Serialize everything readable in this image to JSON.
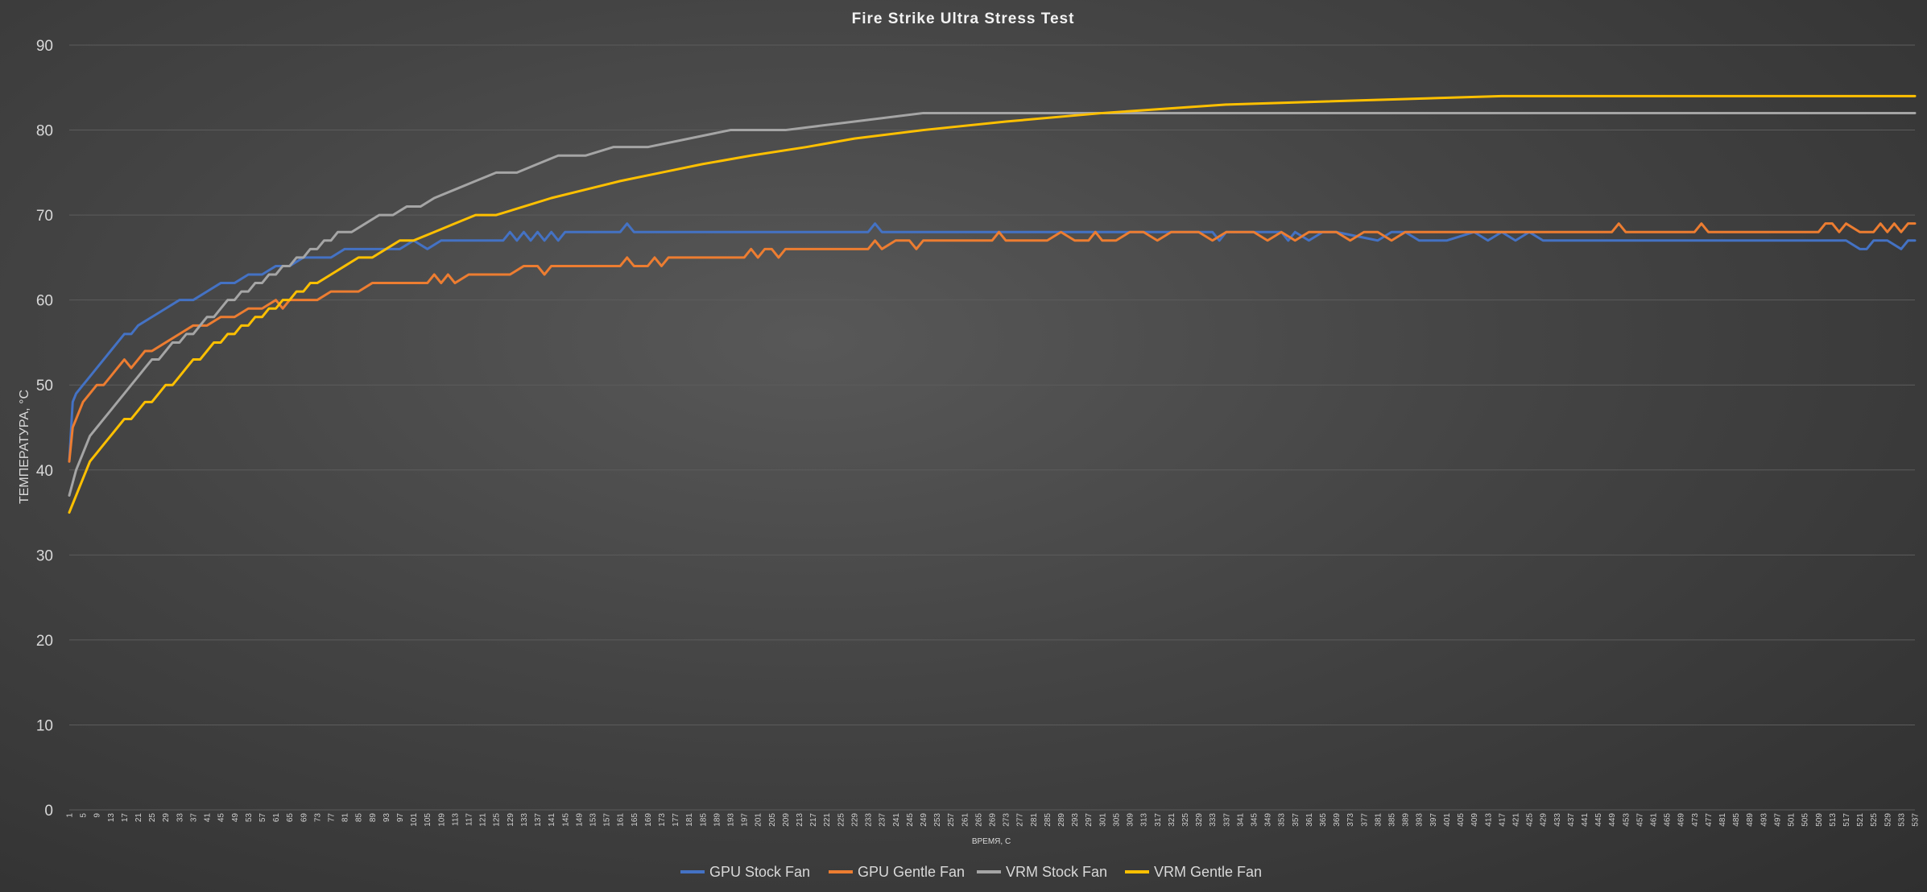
{
  "chart_data": {
    "type": "line",
    "title": "Fire Strike Ultra Stress Test",
    "xlabel": "ВРЕМЯ, С",
    "ylabel": "ТЕМПЕРАТУРА, °С",
    "ylim": [
      0,
      90
    ],
    "yticks": [
      0,
      10,
      20,
      30,
      40,
      50,
      60,
      70,
      80,
      90
    ],
    "xlim": [
      1,
      537
    ],
    "xtick_start": 1,
    "xtick_step": 4,
    "grid": true,
    "legend_position": "bottom",
    "series": [
      {
        "name": "GPU Stock Fan",
        "color": "#4472c4",
        "x": [
          1,
          2,
          3,
          5,
          7,
          9,
          11,
          13,
          15,
          17,
          19,
          21,
          25,
          29,
          33,
          37,
          41,
          45,
          49,
          53,
          57,
          61,
          65,
          69,
          73,
          77,
          81,
          85,
          89,
          93,
          97,
          101,
          105,
          109,
          113,
          117,
          121,
          125,
          127,
          129,
          131,
          133,
          135,
          137,
          139,
          141,
          143,
          145,
          147,
          149,
          153,
          157,
          161,
          163,
          165,
          169,
          177,
          185,
          193,
          201,
          213,
          225,
          233,
          235,
          237,
          249,
          261,
          273,
          285,
          297,
          309,
          321,
          333,
          335,
          337,
          345,
          353,
          355,
          357,
          361,
          365,
          369,
          381,
          385,
          389,
          393,
          401,
          409,
          413,
          417,
          421,
          425,
          429,
          433,
          441,
          449,
          457,
          465,
          473,
          481,
          489,
          497,
          505,
          513,
          517,
          521,
          523,
          525,
          529,
          533,
          535,
          537
        ],
        "values": [
          41,
          48,
          49,
          50,
          51,
          52,
          53,
          54,
          55,
          56,
          56,
          57,
          58,
          59,
          60,
          60,
          61,
          62,
          62,
          63,
          63,
          64,
          64,
          65,
          65,
          65,
          66,
          66,
          66,
          66,
          66,
          67,
          66,
          67,
          67,
          67,
          67,
          67,
          67,
          68,
          67,
          68,
          67,
          68,
          67,
          68,
          67,
          68,
          68,
          68,
          68,
          68,
          68,
          69,
          68,
          68,
          68,
          68,
          68,
          68,
          68,
          68,
          68,
          69,
          68,
          68,
          68,
          68,
          68,
          68,
          68,
          68,
          68,
          67,
          68,
          68,
          68,
          67,
          68,
          67,
          68,
          68,
          67,
          68,
          68,
          67,
          67,
          68,
          67,
          68,
          67,
          68,
          67,
          67,
          67,
          67,
          67,
          67,
          67,
          67,
          67,
          67,
          67,
          67,
          67,
          66,
          66,
          67,
          67,
          66,
          67,
          67
        ]
      },
      {
        "name": "GPU Gentle Fan",
        "color": "#ed7d31",
        "x": [
          1,
          2,
          3,
          5,
          7,
          9,
          11,
          13,
          15,
          17,
          19,
          21,
          23,
          25,
          29,
          33,
          37,
          41,
          45,
          49,
          53,
          57,
          61,
          63,
          65,
          69,
          73,
          77,
          81,
          85,
          89,
          93,
          97,
          101,
          105,
          107,
          109,
          111,
          113,
          117,
          121,
          125,
          129,
          133,
          137,
          139,
          141,
          145,
          153,
          161,
          163,
          165,
          169,
          171,
          173,
          175,
          177,
          185,
          193,
          197,
          199,
          201,
          203,
          205,
          207,
          209,
          217,
          225,
          233,
          235,
          237,
          241,
          245,
          247,
          249,
          257,
          265,
          269,
          271,
          273,
          281,
          285,
          289,
          293,
          297,
          299,
          301,
          305,
          309,
          313,
          317,
          321,
          325,
          329,
          333,
          337,
          341,
          345,
          349,
          353,
          357,
          361,
          365,
          369,
          373,
          377,
          381,
          385,
          389,
          397,
          405,
          413,
          421,
          429,
          437,
          445,
          449,
          451,
          453,
          461,
          469,
          473,
          475,
          477,
          485,
          493,
          501,
          509,
          511,
          513,
          515,
          517,
          521,
          525,
          527,
          529,
          531,
          533,
          535,
          537
        ],
        "values": [
          41,
          45,
          46,
          48,
          49,
          50,
          50,
          51,
          52,
          53,
          52,
          53,
          54,
          54,
          55,
          56,
          57,
          57,
          58,
          58,
          59,
          59,
          60,
          59,
          60,
          60,
          60,
          61,
          61,
          61,
          62,
          62,
          62,
          62,
          62,
          63,
          62,
          63,
          62,
          63,
          63,
          63,
          63,
          64,
          64,
          63,
          64,
          64,
          64,
          64,
          65,
          64,
          64,
          65,
          64,
          65,
          65,
          65,
          65,
          65,
          66,
          65,
          66,
          66,
          65,
          66,
          66,
          66,
          66,
          67,
          66,
          67,
          67,
          66,
          67,
          67,
          67,
          67,
          68,
          67,
          67,
          67,
          68,
          67,
          67,
          68,
          67,
          67,
          68,
          68,
          67,
          68,
          68,
          68,
          67,
          68,
          68,
          68,
          67,
          68,
          67,
          68,
          68,
          68,
          67,
          68,
          68,
          67,
          68,
          68,
          68,
          68,
          68,
          68,
          68,
          68,
          68,
          69,
          68,
          68,
          68,
          68,
          69,
          68,
          68,
          68,
          68,
          68,
          69,
          69,
          68,
          69,
          68,
          68,
          69,
          68,
          69,
          68,
          69,
          69
        ]
      },
      {
        "name": "VRM Stock Fan",
        "color": "#a5a5a5",
        "x": [
          1,
          3,
          5,
          7,
          9,
          11,
          13,
          15,
          17,
          19,
          21,
          23,
          25,
          27,
          29,
          31,
          33,
          35,
          37,
          39,
          41,
          43,
          45,
          47,
          49,
          51,
          53,
          55,
          57,
          59,
          61,
          63,
          65,
          67,
          69,
          71,
          73,
          75,
          77,
          79,
          83,
          87,
          91,
          95,
          99,
          103,
          107,
          113,
          119,
          125,
          131,
          137,
          143,
          151,
          159,
          169,
          181,
          193,
          209,
          229,
          249,
          273,
          537
        ],
        "values": [
          37,
          40,
          42,
          44,
          45,
          46,
          47,
          48,
          49,
          50,
          51,
          52,
          53,
          53,
          54,
          55,
          55,
          56,
          56,
          57,
          58,
          58,
          59,
          60,
          60,
          61,
          61,
          62,
          62,
          63,
          63,
          64,
          64,
          65,
          65,
          66,
          66,
          67,
          67,
          68,
          68,
          69,
          70,
          70,
          71,
          71,
          72,
          73,
          74,
          75,
          75,
          76,
          77,
          77,
          78,
          78,
          79,
          80,
          80,
          81,
          82,
          82,
          82
        ]
      },
      {
        "name": "VRM Gentle Fan",
        "color": "#ffc000",
        "x": [
          1,
          2,
          3,
          5,
          7,
          9,
          11,
          13,
          15,
          17,
          19,
          21,
          23,
          25,
          27,
          29,
          31,
          33,
          35,
          37,
          39,
          41,
          43,
          45,
          47,
          49,
          51,
          53,
          55,
          57,
          59,
          61,
          63,
          65,
          67,
          69,
          71,
          73,
          77,
          81,
          85,
          89,
          93,
          97,
          101,
          107,
          113,
          119,
          125,
          133,
          141,
          151,
          161,
          173,
          185,
          199,
          215,
          229,
          249,
          273,
          301,
          337,
          417,
          537
        ],
        "values": [
          35,
          36,
          37,
          39,
          41,
          42,
          43,
          44,
          45,
          46,
          46,
          47,
          48,
          48,
          49,
          50,
          50,
          51,
          52,
          53,
          53,
          54,
          55,
          55,
          56,
          56,
          57,
          57,
          58,
          58,
          59,
          59,
          60,
          60,
          61,
          61,
          62,
          62,
          63,
          64,
          65,
          65,
          66,
          67,
          67,
          68,
          69,
          70,
          70,
          71,
          72,
          73,
          74,
          75,
          76,
          77,
          78,
          79,
          80,
          81,
          82,
          83,
          84,
          84
        ]
      }
    ]
  }
}
